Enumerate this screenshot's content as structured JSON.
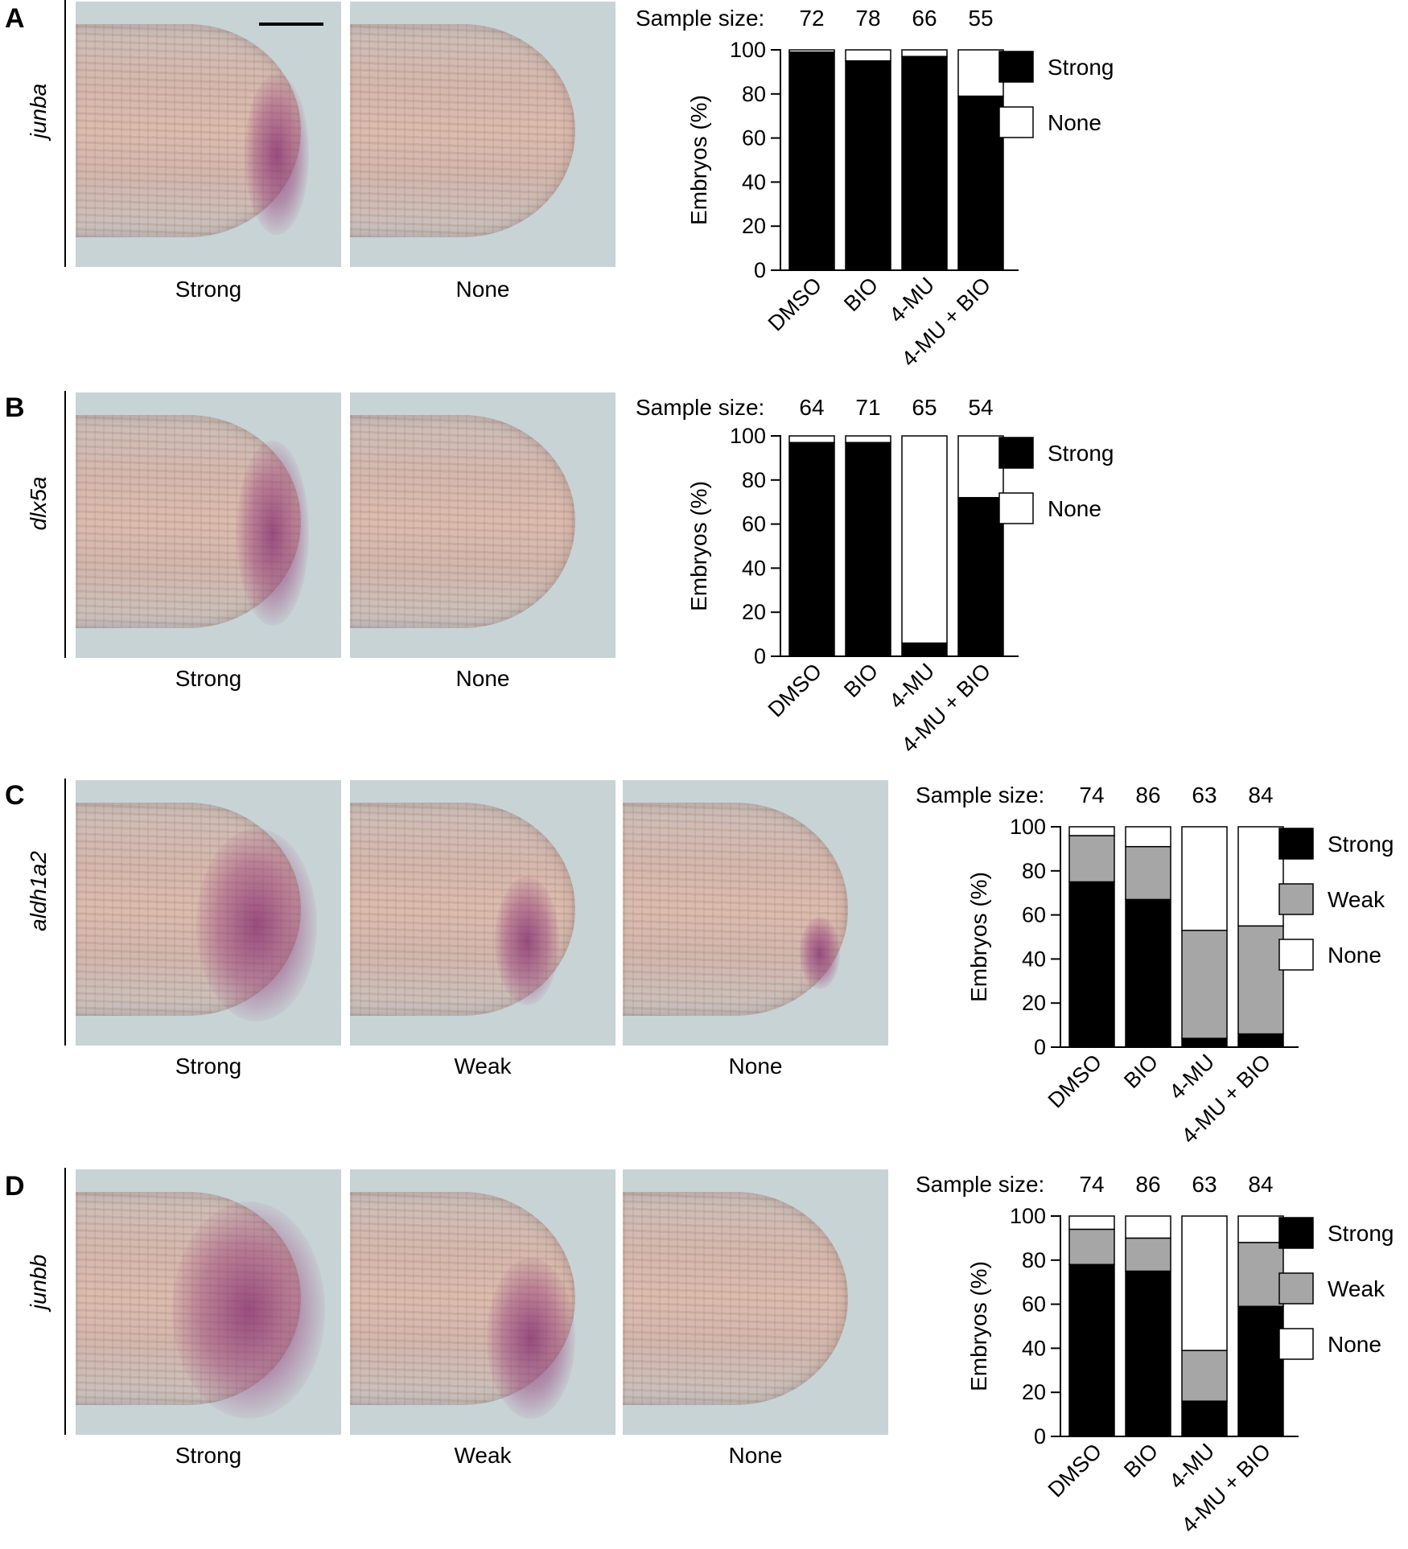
{
  "panels": [
    {
      "letter": "A",
      "gene": "junba",
      "image_labels": [
        "Strong",
        "None"
      ],
      "sample_size_label": "Sample size:",
      "sample_sizes": [
        "72",
        "78",
        "66",
        "55"
      ]
    },
    {
      "letter": "B",
      "gene": "dlx5a",
      "image_labels": [
        "Strong",
        "None"
      ],
      "sample_size_label": "Sample size:",
      "sample_sizes": [
        "64",
        "71",
        "65",
        "54"
      ]
    },
    {
      "letter": "C",
      "gene": "aldh1a2",
      "image_labels": [
        "Strong",
        "Weak",
        "None"
      ],
      "sample_size_label": "Sample size:",
      "sample_sizes": [
        "74",
        "86",
        "63",
        "84"
      ]
    },
    {
      "letter": "D",
      "gene": "junbb",
      "image_labels": [
        "Strong",
        "Weak",
        "None"
      ],
      "sample_size_label": "Sample size:",
      "sample_sizes": [
        "74",
        "86",
        "63",
        "84"
      ]
    }
  ],
  "colors": {
    "strong": "#000000",
    "weak": "#a6a6a6",
    "none": "#ffffff"
  },
  "chart_data": [
    {
      "type": "bar",
      "stacked": true,
      "categories": [
        "DMSO",
        "BIO",
        "4-MU",
        "4-MU + BIO"
      ],
      "series": [
        {
          "name": "Strong",
          "values": [
            99,
            95,
            97,
            79
          ]
        },
        {
          "name": "None",
          "values": [
            1,
            5,
            3,
            21
          ]
        }
      ],
      "ylabel": "Embryos (%)",
      "ylim": [
        0,
        100
      ],
      "yticks": [
        0,
        20,
        40,
        60,
        80,
        100
      ],
      "legend": [
        "Strong",
        "None"
      ],
      "legend_position": "right"
    },
    {
      "type": "bar",
      "stacked": true,
      "categories": [
        "DMSO",
        "BIO",
        "4-MU",
        "4-MU + BIO"
      ],
      "series": [
        {
          "name": "Strong",
          "values": [
            97,
            97,
            6,
            72
          ]
        },
        {
          "name": "None",
          "values": [
            3,
            3,
            94,
            28
          ]
        }
      ],
      "ylabel": "Embryos (%)",
      "ylim": [
        0,
        100
      ],
      "yticks": [
        0,
        20,
        40,
        60,
        80,
        100
      ],
      "legend": [
        "Strong",
        "None"
      ],
      "legend_position": "right"
    },
    {
      "type": "bar",
      "stacked": true,
      "categories": [
        "DMSO",
        "BIO",
        "4-MU",
        "4-MU + BIO"
      ],
      "series": [
        {
          "name": "Strong",
          "values": [
            75,
            67,
            4,
            6
          ]
        },
        {
          "name": "Weak",
          "values": [
            21,
            24,
            49,
            49
          ]
        },
        {
          "name": "None",
          "values": [
            4,
            9,
            47,
            45
          ]
        }
      ],
      "ylabel": "Embryos (%)",
      "ylim": [
        0,
        100
      ],
      "yticks": [
        0,
        20,
        40,
        60,
        80,
        100
      ],
      "legend": [
        "Strong",
        "Weak",
        "None"
      ],
      "legend_position": "right"
    },
    {
      "type": "bar",
      "stacked": true,
      "categories": [
        "DMSO",
        "BIO",
        "4-MU",
        "4-MU + BIO"
      ],
      "series": [
        {
          "name": "Strong",
          "values": [
            78,
            75,
            16,
            59
          ]
        },
        {
          "name": "Weak",
          "values": [
            16,
            15,
            23,
            29
          ]
        },
        {
          "name": "None",
          "values": [
            6,
            10,
            61,
            12
          ]
        }
      ],
      "ylabel": "Embryos (%)",
      "ylim": [
        0,
        100
      ],
      "yticks": [
        0,
        20,
        40,
        60,
        80,
        100
      ],
      "legend": [
        "Strong",
        "Weak",
        "None"
      ],
      "legend_position": "right"
    }
  ]
}
